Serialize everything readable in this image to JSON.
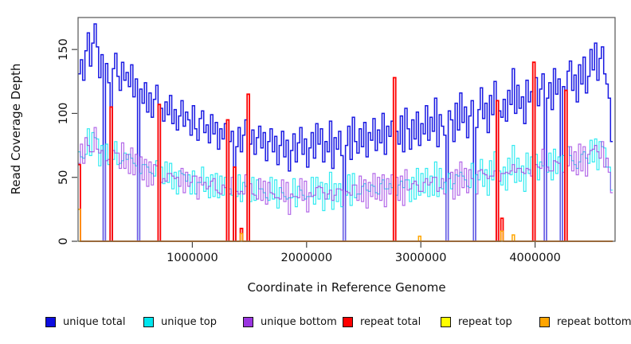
{
  "chart_data": {
    "type": "line",
    "style": "step",
    "title": "",
    "xlabel": "Coordinate in Reference Genome",
    "ylabel": "Read Coverage Depth",
    "xlim": [
      0,
      4700000
    ],
    "ylim": [
      0,
      175
    ],
    "x_ticks": [
      1000000,
      2000000,
      3000000,
      4000000
    ],
    "y_ticks": [
      0,
      50,
      100,
      150
    ],
    "grid": false,
    "legend_position": "bottom",
    "x_start": 0,
    "x_step": 20000,
    "n_points": 234,
    "series": [
      {
        "name": "unique total",
        "color": "#0d0de0",
        "opacity": 0.95,
        "values": [
          131,
          142,
          126,
          149,
          163,
          137,
          155,
          170,
          152,
          128,
          146,
          0,
          139,
          124,
          0,
          135,
          147,
          129,
          118,
          140,
          126,
          132,
          121,
          138,
          113,
          127,
          0,
          119,
          108,
          124,
          101,
          116,
          97,
          111,
          122,
          0,
          104,
          94,
          109,
          99,
          114,
          92,
          103,
          87,
          98,
          110,
          90,
          101,
          95,
          83,
          106,
          88,
          79,
          96,
          102,
          85,
          91,
          77,
          99,
          84,
          93,
          72,
          88,
          80,
          92,
          0,
          78,
          86,
          0,
          74,
          89,
          70,
          83,
          95,
          0,
          76,
          87,
          68,
          81,
          90,
          73,
          85,
          63,
          78,
          88,
          70,
          82,
          60,
          75,
          86,
          66,
          79,
          55,
          71,
          84,
          62,
          77,
          89,
          68,
          80,
          58,
          73,
          85,
          65,
          92,
          76,
          88,
          62,
          78,
          70,
          94,
          57,
          81,
          72,
          86,
          67,
          0,
          75,
          90,
          64,
          97,
          78,
          69,
          88,
          74,
          93,
          66,
          85,
          79,
          96,
          71,
          87,
          77,
          100,
          68,
          90,
          82,
          94,
          0,
          86,
          76,
          98,
          70,
          104,
          88,
          72,
          95,
          80,
          101,
          75,
          92,
          84,
          106,
          79,
          97,
          86,
          112,
          74,
          99,
          90,
          83,
          0,
          102,
          95,
          78,
          108,
          87,
          116,
          93,
          105,
          81,
          98,
          110,
          0,
          89,
          103,
          120,
          96,
          108,
          85,
          114,
          99,
          125,
          0,
          102,
          97,
          111,
          94,
          118,
          107,
          135,
          100,
          122,
          104,
          113,
          92,
          126,
          109,
          117,
          0,
          128,
          106,
          119,
          131,
          0,
          112,
          124,
          103,
          135,
          115,
          127,
          0,
          121,
          0,
          133,
          141,
          118,
          130,
          109,
          138,
          123,
          144,
          116,
          129,
          150,
          134,
          155,
          126,
          143,
          152,
          131,
          123,
          112,
          78
        ]
      },
      {
        "name": "unique top",
        "color": "#00e6ee",
        "opacity": 0.8,
        "values": [
          70,
          66,
          65,
          68,
          88,
          67,
          85,
          81,
          80,
          59,
          75,
          0,
          76,
          60,
          0,
          64,
          78,
          60,
          61,
          63,
          69,
          64,
          68,
          65,
          61,
          59,
          0,
          53,
          60,
          60,
          58,
          54,
          53,
          51,
          63,
          0,
          58,
          45,
          62,
          46,
          61,
          41,
          54,
          37,
          55,
          53,
          52,
          47,
          52,
          37,
          55,
          37,
          46,
          46,
          58,
          39,
          50,
          34,
          52,
          35,
          53,
          34,
          51,
          36,
          50,
          0,
          41,
          36,
          0,
          35,
          52,
          31,
          46,
          43,
          0,
          31,
          50,
          32,
          48,
          41,
          41,
          38,
          34,
          32,
          50,
          33,
          48,
          26,
          42,
          38,
          35,
          33,
          34,
          34,
          49,
          27,
          43,
          40,
          36,
          33,
          35,
          35,
          50,
          29,
          50,
          33,
          46,
          24,
          45,
          33,
          54,
          25,
          45,
          31,
          45,
          27,
          0,
          36,
          52,
          28,
          53,
          34,
          37,
          37,
          43,
          45,
          40,
          39,
          44,
          43,
          38,
          37,
          45,
          48,
          41,
          41,
          45,
          42,
          0,
          36,
          44,
          47,
          42,
          48,
          48,
          31,
          50,
          33,
          57,
          36,
          53,
          38,
          57,
          35,
          51,
          36,
          62,
          35,
          57,
          41,
          46,
          0,
          53,
          41,
          45,
          52,
          51,
          54,
          51,
          48,
          43,
          42,
          61,
          0,
          52,
          48,
          64,
          43,
          56,
          36,
          63,
          48,
          70,
          0,
          55,
          44,
          58,
          40,
          65,
          52,
          75,
          46,
          65,
          47,
          59,
          39,
          69,
          53,
          66,
          0,
          68,
          48,
          62,
          59,
          0,
          54,
          69,
          48,
          72,
          53,
          66,
          0,
          67,
          0,
          74,
          67,
          63,
          60,
          57,
          62,
          68,
          70,
          65,
          61,
          79,
          62,
          80,
          56,
          78,
          74,
          73,
          58,
          58,
          40
        ]
      },
      {
        "name": "unique bottom",
        "color": "#9a35e0",
        "opacity": 0.75,
        "values": [
          61,
          76,
          61,
          81,
          75,
          70,
          70,
          89,
          72,
          69,
          71,
          0,
          63,
          64,
          0,
          71,
          69,
          69,
          57,
          77,
          57,
          68,
          53,
          73,
          52,
          68,
          0,
          66,
          48,
          64,
          43,
          62,
          44,
          60,
          59,
          0,
          46,
          49,
          47,
          53,
          53,
          51,
          49,
          50,
          43,
          57,
          38,
          54,
          43,
          46,
          51,
          51,
          33,
          50,
          44,
          46,
          41,
          43,
          47,
          49,
          40,
          38,
          37,
          44,
          42,
          0,
          37,
          50,
          0,
          39,
          37,
          39,
          37,
          52,
          0,
          45,
          37,
          36,
          33,
          49,
          32,
          47,
          29,
          46,
          38,
          37,
          34,
          34,
          33,
          48,
          31,
          46,
          21,
          37,
          35,
          35,
          34,
          49,
          32,
          47,
          23,
          38,
          35,
          36,
          42,
          43,
          42,
          38,
          33,
          37,
          40,
          32,
          36,
          41,
          41,
          40,
          0,
          39,
          38,
          36,
          44,
          44,
          32,
          51,
          31,
          48,
          26,
          46,
          35,
          53,
          33,
          50,
          32,
          52,
          27,
          49,
          37,
          52,
          0,
          50,
          32,
          51,
          28,
          56,
          40,
          41,
          45,
          47,
          44,
          39,
          39,
          46,
          49,
          44,
          46,
          50,
          50,
          39,
          42,
          49,
          37,
          0,
          49,
          54,
          33,
          56,
          36,
          62,
          42,
          57,
          38,
          56,
          49,
          0,
          37,
          55,
          56,
          53,
          52,
          49,
          51,
          51,
          55,
          0,
          47,
          53,
          53,
          54,
          53,
          55,
          60,
          54,
          57,
          57,
          54,
          53,
          57,
          56,
          51,
          0,
          60,
          58,
          57,
          72,
          0,
          58,
          55,
          55,
          63,
          62,
          61,
          0,
          54,
          0,
          59,
          74,
          55,
          70,
          52,
          76,
          55,
          74,
          51,
          68,
          71,
          72,
          75,
          70,
          65,
          78,
          58,
          65,
          54,
          38
        ]
      },
      {
        "name": "repeat total",
        "color": "#ff0000",
        "opacity": 1,
        "sparse": {
          "base": 0,
          "spikes": {
            "0": 60,
            "14": 105,
            "35": 107,
            "65": 95,
            "68": 58,
            "71": 10,
            "74": 115,
            "138": 128,
            "183": 110,
            "185": 18,
            "199": 140,
            "213": 118
          }
        }
      },
      {
        "name": "repeat top",
        "color": "#ffff00",
        "opacity": 1,
        "sparse": {
          "base": 0,
          "spikes": {}
        }
      },
      {
        "name": "repeat bottom",
        "color": "#ffa500",
        "opacity": 1,
        "sparse": {
          "base": 0,
          "spikes": {
            "0": 25,
            "71": 6,
            "149": 4,
            "185": 8,
            "190": 5
          }
        }
      }
    ]
  },
  "legend": {
    "items": [
      "unique total",
      "unique top",
      "unique bottom",
      "repeat total",
      "repeat top",
      "repeat bottom"
    ]
  }
}
